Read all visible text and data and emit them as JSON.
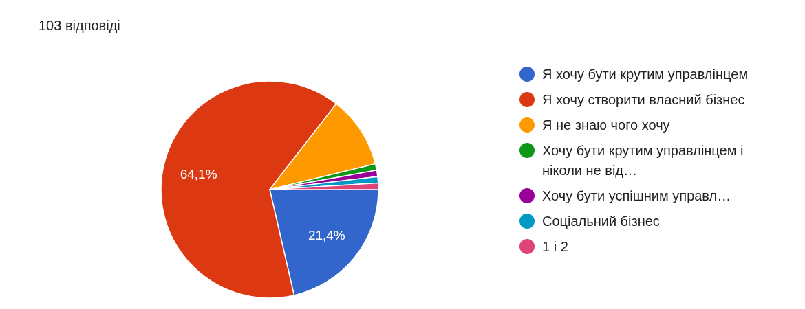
{
  "chart_data": {
    "type": "pie",
    "subtitle": "103 відповіді",
    "categories": [
      "Я хочу бути крутим управлінцем",
      "Я хочу створити власний бізнес",
      "Я не знаю чого хочу",
      "Хочу бути крутим управлінцем і ніколи не від…",
      "Хочу бути успішним управл…",
      "Соціальний бізнес",
      "1 і 2"
    ],
    "values": [
      21.4,
      64.1,
      10.7,
      0.95,
      0.95,
      0.95,
      0.95
    ],
    "colors": [
      "#3366cc",
      "#dc3912",
      "#ff9900",
      "#109618",
      "#990099",
      "#0099c6",
      "#dd4477"
    ],
    "value_labels": [
      "21,4%",
      "64,1%",
      null,
      null,
      null,
      null,
      null
    ],
    "legend": "right"
  }
}
